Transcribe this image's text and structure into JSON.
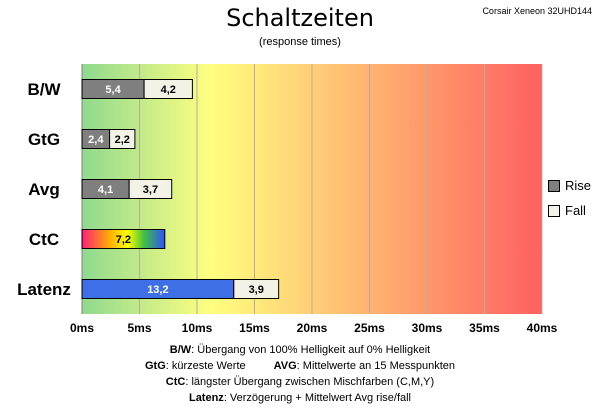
{
  "header": {
    "title": "Schaltzeiten",
    "subtitle": "(response times)",
    "device": "Corsair Xeneon 32UHD144"
  },
  "legend": {
    "items": [
      {
        "label": "Rise",
        "color": "#7f7f7f"
      },
      {
        "label": "Fall",
        "color": "#f2f2e6"
      }
    ]
  },
  "footnotes": {
    "bw_key": "B/W",
    "bw_text": ":  Übergang von 100% Helligkeit auf 0% Helligkeit",
    "gtg_key": "GtG",
    "gtg_text": ": kürzeste  Werte",
    "avg_key": "AVG",
    "avg_text": ": Mittelwerte  an 15 Messpunkten",
    "ctc_key": "CtC",
    "ctc_text": ": längster Übergang  zwischen Mischfarben (C,M,Y)",
    "latenz_key": "Latenz",
    "latenz_text": ": Verzögerung  + Mittelwert Avg rise/fall"
  },
  "chart_data": {
    "type": "bar",
    "orientation": "horizontal",
    "stacked": true,
    "x_unit": "ms",
    "xlim": [
      0,
      40
    ],
    "x_ticks": [
      "0ms",
      "5ms",
      "10ms",
      "15ms",
      "20ms",
      "25ms",
      "30ms",
      "35ms",
      "40ms"
    ],
    "grid": true,
    "legend_position": "right",
    "background_gradient": [
      "#8fd98f",
      "#ffff80",
      "#ff6060"
    ],
    "categories": [
      "B/W",
      "GtG",
      "Avg",
      "CtC",
      "Latenz"
    ],
    "rows": [
      {
        "category": "B/W",
        "segments": [
          {
            "series": "Rise",
            "value": 5.4,
            "label": "5,4",
            "fill": "#7f7f7f",
            "text_color": "#ffffff"
          },
          {
            "series": "Fall",
            "value": 4.2,
            "label": "4,2",
            "fill": "#f2f2e6",
            "text_color": "#000000"
          }
        ]
      },
      {
        "category": "GtG",
        "segments": [
          {
            "series": "Rise",
            "value": 2.4,
            "label": "2,4",
            "fill": "#7f7f7f",
            "text_color": "#ffffff"
          },
          {
            "series": "Fall",
            "value": 2.2,
            "label": "2,2",
            "fill": "#f2f2e6",
            "text_color": "#000000"
          }
        ]
      },
      {
        "category": "Avg",
        "segments": [
          {
            "series": "Rise",
            "value": 4.1,
            "label": "4,1",
            "fill": "#7f7f7f",
            "text_color": "#ffffff"
          },
          {
            "series": "Fall",
            "value": 3.7,
            "label": "3,7",
            "fill": "#f2f2e6",
            "text_color": "#000000"
          }
        ]
      },
      {
        "category": "CtC",
        "segments": [
          {
            "series": "CtC",
            "value": 7.2,
            "label": "7,2",
            "fill": "rainbow",
            "text_color": "#000000"
          }
        ]
      },
      {
        "category": "Latenz",
        "segments": [
          {
            "series": "Latenz",
            "value": 13.2,
            "label": "13,2",
            "fill": "#3f6fe6",
            "text_color": "#ffffff"
          },
          {
            "series": "Fall",
            "value": 3.9,
            "label": "3,9",
            "fill": "#f2f2e6",
            "text_color": "#000000"
          }
        ]
      }
    ]
  }
}
